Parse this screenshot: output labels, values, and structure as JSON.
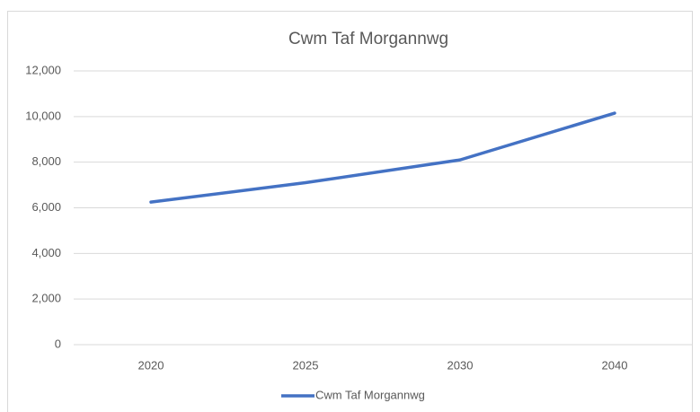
{
  "chart_data": {
    "type": "line",
    "title": "Cwm Taf Morgannwg",
    "categories": [
      "2020",
      "2025",
      "2030",
      "2040"
    ],
    "series": [
      {
        "name": "Cwm Taf Morgannwg",
        "color": "#4472c4",
        "values": [
          6250,
          7100,
          8100,
          10150
        ]
      }
    ],
    "ylim": [
      0,
      12000
    ],
    "yticks": [
      0,
      {
        "value": 2000,
        "label": "2,000"
      },
      {
        "value": 4000,
        "label": "4,000"
      },
      {
        "value": 6000,
        "label": "6,000"
      },
      {
        "value": 8000,
        "label": "8,000"
      },
      {
        "value": 10000,
        "label": "10,000"
      },
      {
        "value": 12000,
        "label": "12,000"
      }
    ],
    "grid": true,
    "legend": "bottom"
  }
}
